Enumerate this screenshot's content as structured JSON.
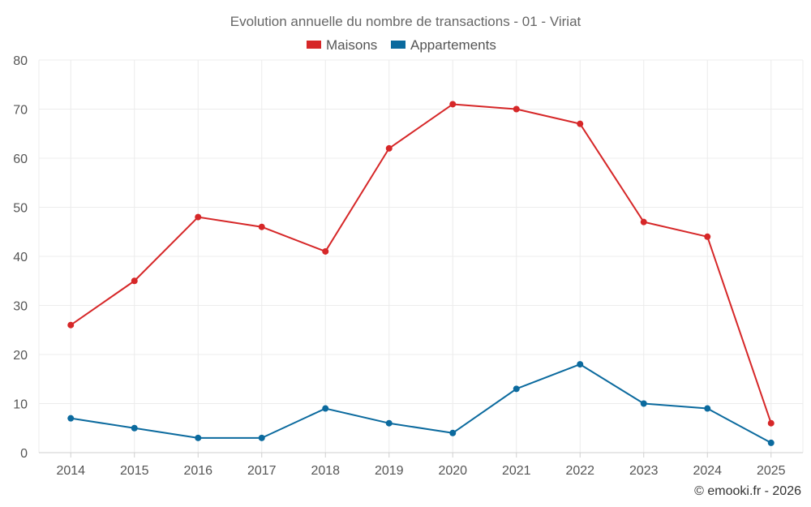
{
  "chart_data": {
    "type": "line",
    "title": "Evolution annuelle du nombre de transactions - 01 - Viriat",
    "categories": [
      "2014",
      "2015",
      "2016",
      "2017",
      "2018",
      "2019",
      "2020",
      "2021",
      "2022",
      "2023",
      "2024",
      "2025"
    ],
    "series": [
      {
        "name": "Maisons",
        "color": "#d62728",
        "values": [
          26,
          35,
          48,
          46,
          41,
          62,
          71,
          70,
          67,
          47,
          44,
          6
        ]
      },
      {
        "name": "Appartements",
        "color": "#0b6a9e",
        "values": [
          7,
          5,
          3,
          3,
          9,
          6,
          4,
          13,
          18,
          10,
          9,
          2
        ]
      }
    ],
    "ylim": [
      0,
      80
    ],
    "yticks": [
      0,
      10,
      20,
      30,
      40,
      50,
      60,
      70,
      80
    ],
    "grid": true,
    "legend_position": "top-center",
    "xlabel": "",
    "ylabel": ""
  },
  "credit": "© emooki.fr - 2026"
}
